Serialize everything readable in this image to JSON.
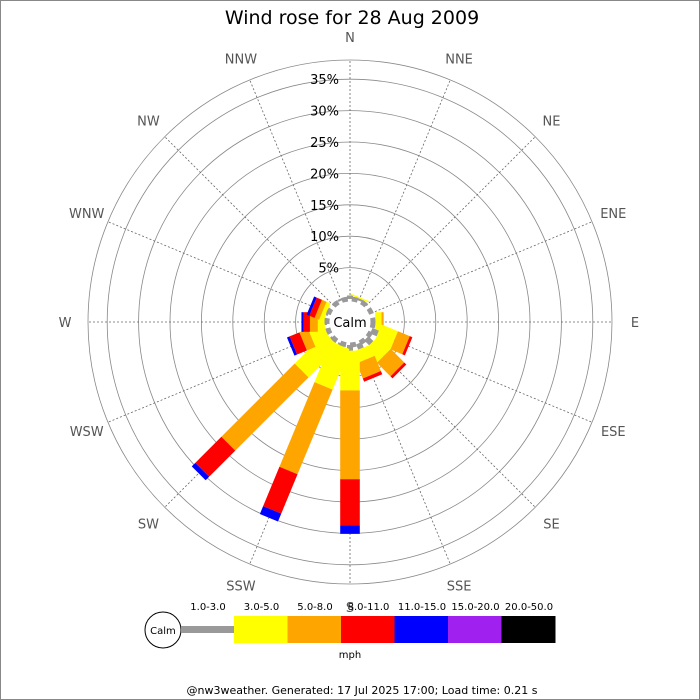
{
  "chart_data": {
    "type": "wind-rose",
    "title": "Wind rose for 28 Aug 2009",
    "directions": [
      "N",
      "NNE",
      "NE",
      "ENE",
      "E",
      "ESE",
      "SE",
      "SSE",
      "S",
      "SSW",
      "SW",
      "WSW",
      "W",
      "WNW",
      "NW",
      "NNW"
    ],
    "radial_ticks": [
      "5%",
      "10%",
      "15%",
      "20%",
      "25%",
      "30%",
      "35%"
    ],
    "radial_max": 35,
    "grid": true,
    "calm_label": "Calm",
    "speed_unit": "mph",
    "speed_bins": [
      {
        "label": "1.0-3.0",
        "color": "#999999"
      },
      {
        "label": "3.0-5.0",
        "color": "#ffff00"
      },
      {
        "label": "5.0-8.0",
        "color": "#ffa500"
      },
      {
        "label": "8.0-11.0",
        "color": "#ff0000"
      },
      {
        "label": "11.0-15.0",
        "color": "#0000ff"
      },
      {
        "label": "15.0-20.0",
        "color": "#a020f0"
      },
      {
        "label": "20.0-50.0",
        "color": "#000000"
      }
    ],
    "series_by_direction": [
      {
        "direction": "N",
        "cumulative": [
          0.5,
          0.5,
          0.5,
          0.5
        ]
      },
      {
        "direction": "NNE",
        "cumulative": [
          0.3,
          0.5,
          0.5,
          0.5
        ]
      },
      {
        "direction": "NE",
        "cumulative": [
          0.0,
          0.0,
          0.0,
          0.0
        ]
      },
      {
        "direction": "ENE",
        "cumulative": [
          0.0,
          0.0,
          0.0,
          0.0
        ]
      },
      {
        "direction": "E",
        "cumulative": [
          0.3,
          1.2,
          1.5,
          1.5
        ]
      },
      {
        "direction": "ESE",
        "cumulative": [
          1.0,
          3.5,
          5.3,
          5.7
        ]
      },
      {
        "direction": "SE",
        "cumulative": [
          1.0,
          3.5,
          6.2,
          6.6
        ]
      },
      {
        "direction": "SSE",
        "cumulative": [
          0.8,
          2.5,
          4.8,
          5.3
        ]
      },
      {
        "direction": "S",
        "cumulative": [
          0.8,
          6.4,
          18.9,
          25.4,
          26.6
        ]
      },
      {
        "direction": "SSW",
        "cumulative": [
          0.3,
          6.5,
          19.4,
          25.4,
          26.6
        ]
      },
      {
        "direction": "SW",
        "cumulative": [
          0.3,
          6.4,
          21.0,
          26.2,
          26.9
        ]
      },
      {
        "direction": "WSW",
        "cumulative": [
          0.3,
          2.6,
          3.9,
          5.4,
          5.8
        ]
      },
      {
        "direction": "W",
        "cumulative": [
          0.3,
          1.3,
          2.4,
          3.3,
          3.6
        ]
      },
      {
        "direction": "WNW",
        "cumulative": [
          0.3,
          0.9,
          1.6,
          2.4,
          2.8
        ]
      },
      {
        "direction": "NW",
        "cumulative": [
          0.0,
          0.0,
          0.0,
          0.0
        ]
      },
      {
        "direction": "NNW",
        "cumulative": [
          0.3,
          0.3,
          0.3,
          0.3
        ]
      }
    ],
    "footer": "@nw3weather. Generated: 17 Jul 2025 17:00; Load time: 0.21 s"
  }
}
